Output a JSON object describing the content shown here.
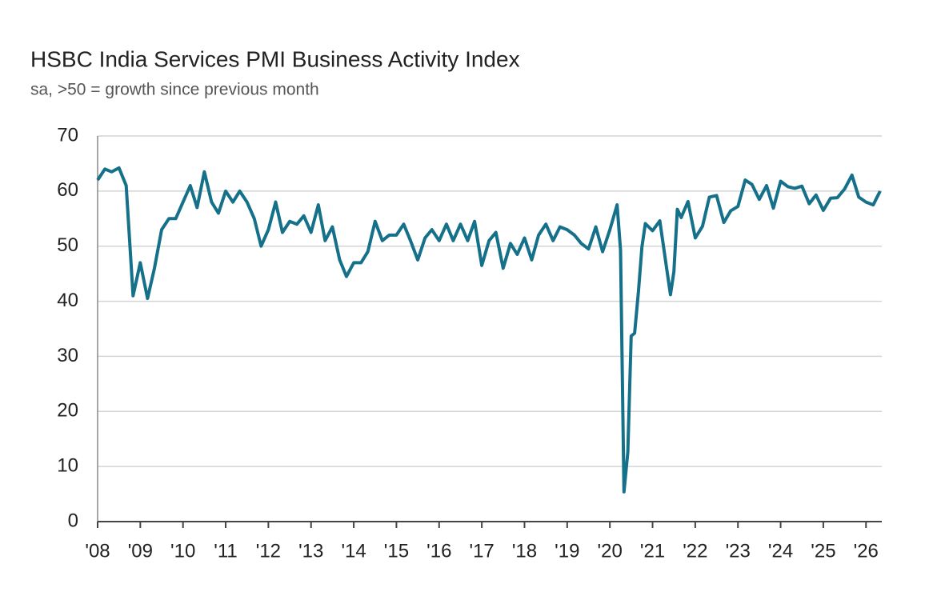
{
  "chart_data": {
    "type": "line",
    "title": "HSBC India Services PMI Business Activity Index",
    "subtitle": "sa, >50 = growth since previous month",
    "grid": true,
    "xlim": [
      2008,
      2026.37
    ],
    "ylim": [
      0,
      70
    ],
    "yticks": [
      0,
      10,
      20,
      30,
      40,
      50,
      60,
      70
    ],
    "xticks": [
      {
        "value": 2008,
        "label": "'08"
      },
      {
        "value": 2009,
        "label": "'09"
      },
      {
        "value": 2010,
        "label": "'10"
      },
      {
        "value": 2011,
        "label": "'11"
      },
      {
        "value": 2012,
        "label": "'12"
      },
      {
        "value": 2013,
        "label": "'13"
      },
      {
        "value": 2014,
        "label": "'14"
      },
      {
        "value": 2015,
        "label": "'15"
      },
      {
        "value": 2016,
        "label": "'16"
      },
      {
        "value": 2017,
        "label": "'17"
      },
      {
        "value": 2018,
        "label": "'18"
      },
      {
        "value": 2019,
        "label": "'19"
      },
      {
        "value": 2020,
        "label": "'20"
      },
      {
        "value": 2021,
        "label": "'21"
      },
      {
        "value": 2022,
        "label": "'22"
      },
      {
        "value": 2023,
        "label": "'23"
      },
      {
        "value": 2024,
        "label": "'24"
      },
      {
        "value": 2025,
        "label": "'25"
      },
      {
        "value": 2026,
        "label": "'26"
      }
    ],
    "x": [
      2008.0,
      2008.17,
      2008.33,
      2008.5,
      2008.67,
      2008.83,
      2009.0,
      2009.17,
      2009.33,
      2009.5,
      2009.67,
      2009.83,
      2010.0,
      2010.17,
      2010.33,
      2010.5,
      2010.67,
      2010.83,
      2011.0,
      2011.17,
      2011.33,
      2011.5,
      2011.67,
      2011.83,
      2012.0,
      2012.17,
      2012.33,
      2012.5,
      2012.67,
      2012.83,
      2013.0,
      2013.17,
      2013.33,
      2013.5,
      2013.67,
      2013.83,
      2014.0,
      2014.17,
      2014.33,
      2014.5,
      2014.67,
      2014.83,
      2015.0,
      2015.17,
      2015.33,
      2015.5,
      2015.67,
      2015.83,
      2016.0,
      2016.17,
      2016.33,
      2016.5,
      2016.67,
      2016.83,
      2017.0,
      2017.17,
      2017.33,
      2017.5,
      2017.67,
      2017.83,
      2018.0,
      2018.17,
      2018.33,
      2018.5,
      2018.67,
      2018.83,
      2019.0,
      2019.17,
      2019.33,
      2019.5,
      2019.67,
      2019.83,
      2020.0,
      2020.17,
      2020.25,
      2020.33,
      2020.42,
      2020.5,
      2020.58,
      2020.67,
      2020.75,
      2020.83,
      2021.0,
      2021.17,
      2021.33,
      2021.42,
      2021.5,
      2021.58,
      2021.67,
      2021.83,
      2022.0,
      2022.17,
      2022.33,
      2022.5,
      2022.67,
      2022.83,
      2023.0,
      2023.17,
      2023.33,
      2023.5,
      2023.67,
      2023.83,
      2024.0,
      2024.17,
      2024.33,
      2024.5,
      2024.67,
      2024.83,
      2025.0,
      2025.17,
      2025.33,
      2025.5,
      2025.67,
      2025.83,
      2026.0,
      2026.17,
      2026.33
    ],
    "series": [
      {
        "color": "#15708a",
        "values": [
          62,
          64,
          63.5,
          64.2,
          61,
          41,
          47,
          40.5,
          46,
          53,
          55,
          55,
          58,
          61,
          57,
          63.5,
          58,
          56,
          60,
          58,
          60,
          58,
          55,
          50,
          53,
          58,
          52.5,
          54.5,
          54,
          55.5,
          52.5,
          57.5,
          51,
          53.5,
          47.5,
          44.5,
          47,
          47,
          49,
          54.5,
          51,
          52,
          52,
          54,
          51,
          47.5,
          51.5,
          53,
          51,
          54,
          51,
          54,
          51,
          54.5,
          46.5,
          51,
          52.5,
          46,
          50.5,
          48.5,
          51.5,
          47.5,
          52,
          54,
          51,
          53.5,
          53,
          52,
          50.5,
          49.5,
          53.5,
          49,
          53,
          57.5,
          49.3,
          5.4,
          12.6,
          33.7,
          34.2,
          41.8,
          49.8,
          54.1,
          52.8,
          54.6,
          46,
          41.2,
          45.4,
          56.7,
          55.2,
          58.1,
          51.5,
          53.6,
          58.9,
          59.2,
          54.3,
          56.4,
          57.2,
          62,
          61.2,
          58.5,
          61,
          56.9,
          61.8,
          60.8,
          60.5,
          60.9,
          57.7,
          59.3,
          56.5,
          58.7,
          58.8,
          60.4,
          62.9,
          58.9,
          58,
          57.5,
          60
        ]
      }
    ]
  }
}
